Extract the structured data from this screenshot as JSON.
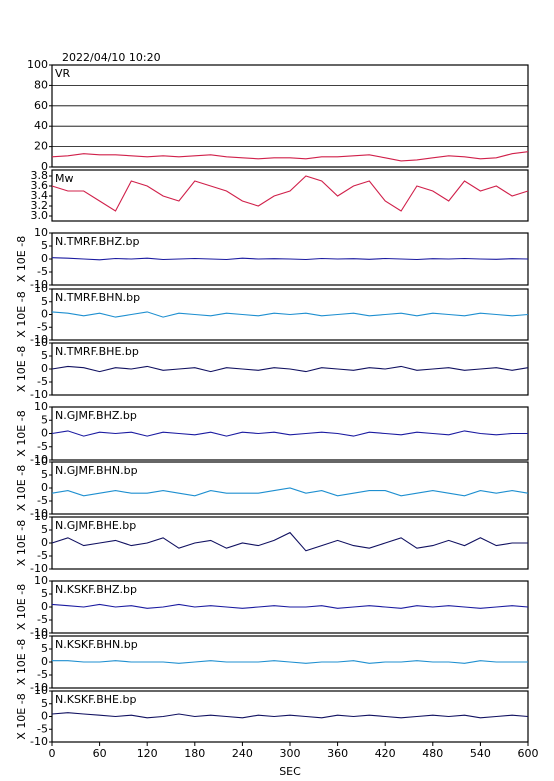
{
  "chart_data": [
    {
      "type": "line",
      "title": "2022/04/10 10:20",
      "xlim": [
        0,
        600
      ],
      "x": [
        0,
        20,
        40,
        60,
        80,
        100,
        120,
        140,
        160,
        180,
        200,
        220,
        240,
        260,
        280,
        300,
        320,
        340,
        360,
        380,
        400,
        420,
        440,
        460,
        480,
        500,
        520,
        540,
        560,
        580,
        600
      ],
      "ylim": [
        0,
        100
      ],
      "yticks": [
        0,
        20,
        40,
        60,
        80,
        100
      ],
      "grid": true,
      "series": [
        {
          "name": "VR",
          "color": "#d0204a",
          "values": [
            10,
            11,
            13,
            12,
            12,
            11,
            10,
            11,
            10,
            11,
            12,
            10,
            9,
            8,
            9,
            9,
            8,
            10,
            10,
            11,
            12,
            9,
            6,
            7,
            9,
            11,
            10,
            8,
            9,
            13,
            15
          ]
        }
      ]
    },
    {
      "type": "line",
      "xlim": [
        0,
        600
      ],
      "x": [
        0,
        20,
        40,
        60,
        80,
        100,
        120,
        140,
        160,
        180,
        200,
        220,
        240,
        260,
        280,
        300,
        320,
        340,
        360,
        380,
        400,
        420,
        440,
        460,
        480,
        500,
        520,
        540,
        560,
        580,
        600
      ],
      "ylim": [
        2.9,
        3.92
      ],
      "yticks": [
        {
          "value": 3,
          "label": "3.0"
        },
        {
          "value": 3.2,
          "label": "3.2"
        },
        {
          "value": 3.4,
          "label": "3.4"
        },
        {
          "value": 3.6,
          "label": "3.6"
        },
        {
          "value": 3.8,
          "label": "3.8"
        }
      ],
      "series": [
        {
          "name": "Mw",
          "color": "#d0204a",
          "values": [
            3.6,
            3.5,
            3.5,
            3.3,
            3.1,
            3.7,
            3.6,
            3.4,
            3.3,
            3.7,
            3.6,
            3.5,
            3.3,
            3.2,
            3.4,
            3.5,
            3.8,
            3.7,
            3.4,
            3.6,
            3.7,
            3.3,
            3.1,
            3.6,
            3.5,
            3.3,
            3.7,
            3.5,
            3.6,
            3.4,
            3.5
          ]
        }
      ]
    },
    {
      "type": "line",
      "ylabel": "X 10E -8",
      "xlim": [
        0,
        600
      ],
      "x": [
        0,
        20,
        40,
        60,
        80,
        100,
        120,
        140,
        160,
        180,
        200,
        220,
        240,
        260,
        280,
        300,
        320,
        340,
        360,
        380,
        400,
        420,
        440,
        460,
        480,
        500,
        520,
        540,
        560,
        580,
        600
      ],
      "ylim": [
        -10,
        10
      ],
      "yticks": [
        -10,
        -5,
        0,
        5,
        10
      ],
      "series": [
        {
          "name": "N.TMRF.BHZ.bp",
          "color": "#1a1aa0",
          "values": [
            0.5,
            0.3,
            0,
            -0.3,
            0.2,
            0,
            0.3,
            -0.2,
            0,
            0.2,
            0,
            -0.2,
            0.3,
            0,
            0.1,
            0,
            -0.2,
            0.2,
            0,
            0.1,
            -0.1,
            0.2,
            0,
            -0.2,
            0.1,
            0,
            0.2,
            0,
            -0.1,
            0.1,
            0
          ]
        }
      ]
    },
    {
      "type": "line",
      "ylabel": "X 10E -8",
      "xlim": [
        0,
        600
      ],
      "x": [
        0,
        20,
        40,
        60,
        80,
        100,
        120,
        140,
        160,
        180,
        200,
        220,
        240,
        260,
        280,
        300,
        320,
        340,
        360,
        380,
        400,
        420,
        440,
        460,
        480,
        500,
        520,
        540,
        560,
        580,
        600
      ],
      "ylim": [
        -10,
        10
      ],
      "yticks": [
        -10,
        -5,
        0,
        5,
        10
      ],
      "series": [
        {
          "name": "N.TMRF.BHN.bp",
          "color": "#1e8fd0",
          "values": [
            1,
            0.5,
            -0.5,
            0.5,
            -1,
            0,
            1,
            -1,
            0.5,
            0,
            -0.5,
            0.5,
            0,
            -0.5,
            0.5,
            0,
            0.5,
            -0.5,
            0,
            0.5,
            -0.5,
            0,
            0.5,
            -0.5,
            0.5,
            0,
            -0.5,
            0.5,
            0,
            -0.5,
            0
          ]
        }
      ]
    },
    {
      "type": "line",
      "ylabel": "X 10E -8",
      "xlim": [
        0,
        600
      ],
      "x": [
        0,
        20,
        40,
        60,
        80,
        100,
        120,
        140,
        160,
        180,
        200,
        220,
        240,
        260,
        280,
        300,
        320,
        340,
        360,
        380,
        400,
        420,
        440,
        460,
        480,
        500,
        520,
        540,
        560,
        580,
        600
      ],
      "ylim": [
        -10,
        10
      ],
      "yticks": [
        -10,
        -5,
        0,
        5,
        10
      ],
      "series": [
        {
          "name": "N.TMRF.BHE.bp",
          "color": "#101060",
          "values": [
            0,
            1,
            0.5,
            -1,
            0.5,
            0,
            1,
            -0.5,
            0,
            0.5,
            -1,
            0.5,
            0,
            -0.5,
            0.5,
            0,
            -1,
            0.5,
            0,
            -0.5,
            0.5,
            0,
            1,
            -0.5,
            0,
            0.5,
            -0.5,
            0,
            0.5,
            -0.5,
            0.5
          ]
        }
      ]
    },
    {
      "type": "line",
      "ylabel": "X 10E -8",
      "xlim": [
        0,
        600
      ],
      "x": [
        0,
        20,
        40,
        60,
        80,
        100,
        120,
        140,
        160,
        180,
        200,
        220,
        240,
        260,
        280,
        300,
        320,
        340,
        360,
        380,
        400,
        420,
        440,
        460,
        480,
        500,
        520,
        540,
        560,
        580,
        600
      ],
      "ylim": [
        -10,
        10
      ],
      "yticks": [
        -10,
        -5,
        0,
        5,
        10
      ],
      "series": [
        {
          "name": "N.GJMF.BHZ.bp",
          "color": "#1a1aa0",
          "values": [
            0,
            1,
            -1,
            0.5,
            0,
            0.5,
            -1,
            0.5,
            0,
            -0.5,
            0.5,
            -1,
            0.5,
            0,
            0.5,
            -0.5,
            0,
            0.5,
            0,
            -1,
            0.5,
            0,
            -0.5,
            0.5,
            0,
            -0.5,
            1,
            0,
            -0.5,
            0,
            0
          ]
        }
      ]
    },
    {
      "type": "line",
      "ylabel": "X 10E -8",
      "xlim": [
        0,
        600
      ],
      "x": [
        0,
        20,
        40,
        60,
        80,
        100,
        120,
        140,
        160,
        180,
        200,
        220,
        240,
        260,
        280,
        300,
        320,
        340,
        360,
        380,
        400,
        420,
        440,
        460,
        480,
        500,
        520,
        540,
        560,
        580,
        600
      ],
      "ylim": [
        -10,
        10
      ],
      "yticks": [
        -10,
        -5,
        0,
        5,
        10
      ],
      "series": [
        {
          "name": "N.GJMF.BHN.bp",
          "color": "#1e8fd0",
          "values": [
            -2,
            -1,
            -3,
            -2,
            -1,
            -2,
            -2,
            -1,
            -2,
            -3,
            -1,
            -2,
            -2,
            -2,
            -1,
            0,
            -2,
            -1,
            -3,
            -2,
            -1,
            -1,
            -3,
            -2,
            -1,
            -2,
            -3,
            -1,
            -2,
            -1,
            -2
          ]
        }
      ]
    },
    {
      "type": "line",
      "ylabel": "X 10E -8",
      "xlim": [
        0,
        600
      ],
      "x": [
        0,
        20,
        40,
        60,
        80,
        100,
        120,
        140,
        160,
        180,
        200,
        220,
        240,
        260,
        280,
        300,
        320,
        340,
        360,
        380,
        400,
        420,
        440,
        460,
        480,
        500,
        520,
        540,
        560,
        580,
        600
      ],
      "ylim": [
        -10,
        10
      ],
      "yticks": [
        -10,
        -5,
        0,
        5,
        10
      ],
      "series": [
        {
          "name": "N.GJMF.BHE.bp",
          "color": "#101060",
          "values": [
            0,
            2,
            -1,
            0,
            1,
            -1,
            0,
            2,
            -2,
            0,
            1,
            -2,
            0,
            -1,
            1,
            4,
            -3,
            -1,
            1,
            -1,
            -2,
            0,
            2,
            -2,
            -1,
            1,
            -1,
            2,
            -1,
            0,
            0
          ]
        }
      ]
    },
    {
      "type": "line",
      "ylabel": "X 10E -8",
      "xlim": [
        0,
        600
      ],
      "x": [
        0,
        20,
        40,
        60,
        80,
        100,
        120,
        140,
        160,
        180,
        200,
        220,
        240,
        260,
        280,
        300,
        320,
        340,
        360,
        380,
        400,
        420,
        440,
        460,
        480,
        500,
        520,
        540,
        560,
        580,
        600
      ],
      "ylim": [
        -10,
        10
      ],
      "yticks": [
        -10,
        -5,
        0,
        5,
        10
      ],
      "series": [
        {
          "name": "N.KSKF.BHZ.bp",
          "color": "#1a1aa0",
          "values": [
            1,
            0.5,
            0,
            1,
            0,
            0.5,
            -0.5,
            0,
            1,
            0,
            0.5,
            0,
            -0.5,
            0,
            0.5,
            0,
            0,
            0.5,
            -0.5,
            0,
            0.5,
            0,
            -0.5,
            0.5,
            0,
            0.5,
            0,
            -0.5,
            0,
            0.5,
            0
          ]
        }
      ]
    },
    {
      "type": "line",
      "ylabel": "X 10E -8",
      "xlim": [
        0,
        600
      ],
      "x": [
        0,
        20,
        40,
        60,
        80,
        100,
        120,
        140,
        160,
        180,
        200,
        220,
        240,
        260,
        280,
        300,
        320,
        340,
        360,
        380,
        400,
        420,
        440,
        460,
        480,
        500,
        520,
        540,
        560,
        580,
        600
      ],
      "ylim": [
        -10,
        10
      ],
      "yticks": [
        -10,
        -5,
        0,
        5,
        10
      ],
      "series": [
        {
          "name": "N.KSKF.BHN.bp",
          "color": "#1e8fd0",
          "values": [
            0.5,
            0.5,
            0,
            0,
            0.5,
            0,
            0,
            0,
            -0.5,
            0,
            0.5,
            0,
            0,
            0,
            0.5,
            0,
            -0.5,
            0,
            0,
            0.5,
            -0.5,
            0,
            0,
            0.5,
            0,
            0,
            -0.5,
            0.5,
            0,
            0,
            0
          ]
        }
      ]
    },
    {
      "type": "line",
      "ylabel": "X 10E -8",
      "xlabel": "SEC",
      "xlim": [
        0,
        600
      ],
      "xticks": [
        0,
        60,
        120,
        180,
        240,
        300,
        360,
        420,
        480,
        540,
        600
      ],
      "x": [
        0,
        20,
        40,
        60,
        80,
        100,
        120,
        140,
        160,
        180,
        200,
        220,
        240,
        260,
        280,
        300,
        320,
        340,
        360,
        380,
        400,
        420,
        440,
        460,
        480,
        500,
        520,
        540,
        560,
        580,
        600
      ],
      "ylim": [
        -10,
        10
      ],
      "yticks": [
        -10,
        -5,
        0,
        5,
        10
      ],
      "series": [
        {
          "name": "N.KSKF.BHE.bp",
          "color": "#101060",
          "values": [
            1,
            1.5,
            1,
            0.5,
            0,
            0.5,
            -0.5,
            0,
            1,
            0,
            0.5,
            0,
            -0.5,
            0.5,
            0,
            0.5,
            0,
            -0.5,
            0.5,
            0,
            0.5,
            0,
            -0.5,
            0,
            0.5,
            0,
            0.5,
            -0.5,
            0,
            0.5,
            0
          ]
        }
      ]
    }
  ]
}
